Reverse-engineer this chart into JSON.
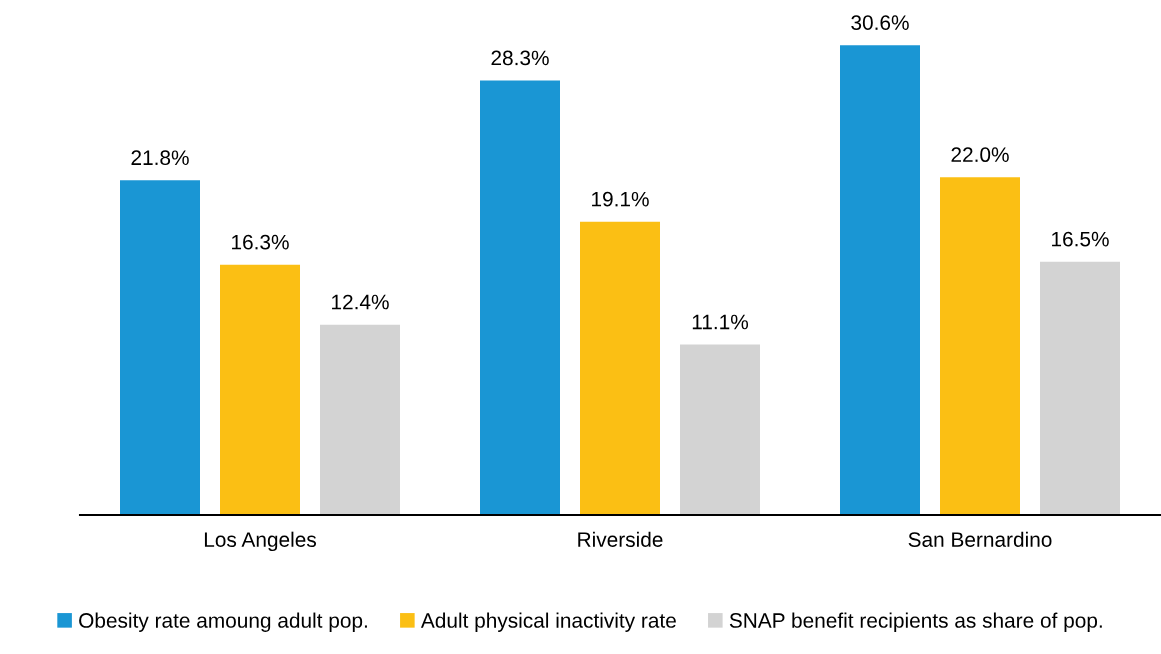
{
  "chart_data": {
    "type": "bar",
    "categories": [
      "Los Angeles",
      "Riverside",
      "San Bernardino"
    ],
    "series": [
      {
        "name": "Obesity rate amoung adult pop.",
        "color": "#1a96d4",
        "values": [
          21.8,
          28.3,
          30.6
        ],
        "value_labels": [
          "21.8%",
          "28.3%",
          "30.6%"
        ]
      },
      {
        "name": "Adult physical inactivity rate",
        "color": "#fbbf14",
        "values": [
          16.3,
          19.1,
          22.0
        ],
        "value_labels": [
          "16.3%",
          "19.1%",
          "22.0%"
        ]
      },
      {
        "name": "SNAP benefit recipients as share of pop.",
        "color": "#d3d3d3",
        "values": [
          12.4,
          11.1,
          16.5
        ],
        "value_labels": [
          "12.4%",
          "11.1%",
          "16.5%"
        ]
      }
    ],
    "legend": "bottom",
    "grid": false,
    "tick_labels": "x"
  }
}
